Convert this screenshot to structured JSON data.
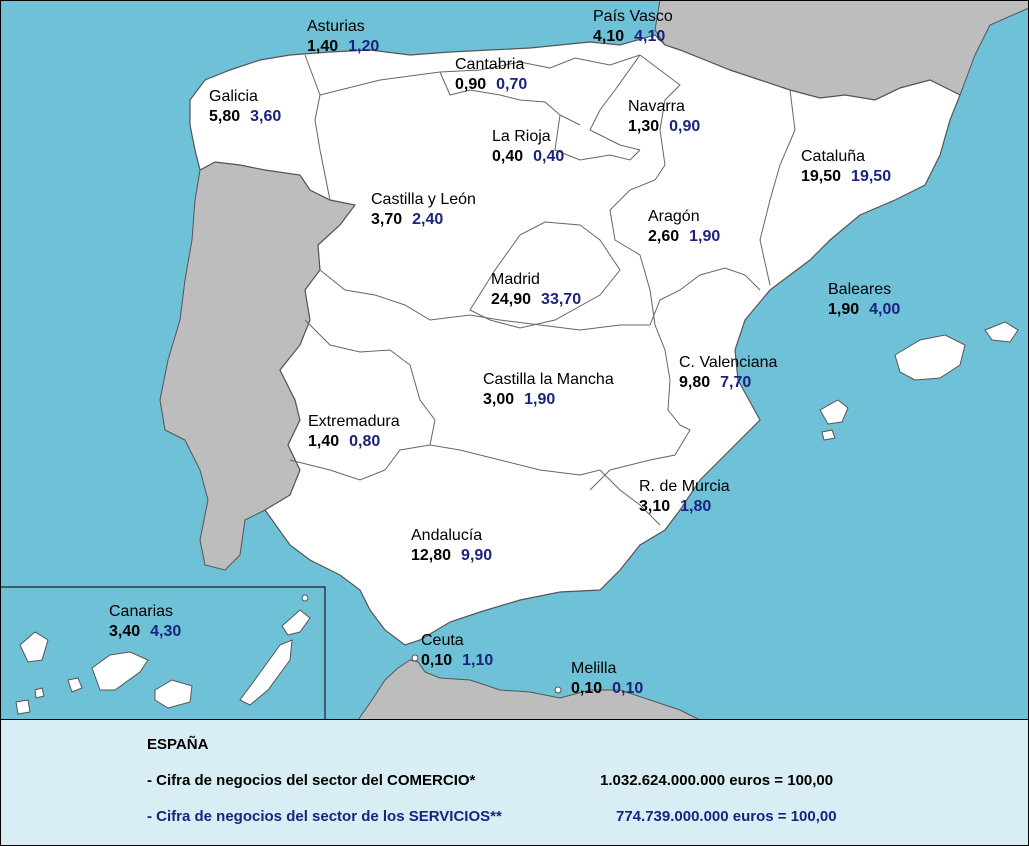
{
  "colors": {
    "sea": "#6ec1d6",
    "land_spain": "#ffffff",
    "land_other": "#bdbdbd",
    "region_border": "#555555",
    "comercio_value": "#000000",
    "servicios_value": "#1a237e",
    "legend_bg": "#d9edf4"
  },
  "regions": [
    {
      "name": "Asturias",
      "comercio": "1,40",
      "servicios": "1,20"
    },
    {
      "name": "País Vasco",
      "comercio": "4,10",
      "servicios": "4,10"
    },
    {
      "name": "Cantabria",
      "comercio": "0,90",
      "servicios": "0,70"
    },
    {
      "name": "Galicia",
      "comercio": "5,80",
      "servicios": "3,60"
    },
    {
      "name": "Navarra",
      "comercio": "1,30",
      "servicios": "0,90"
    },
    {
      "name": "La Rioja",
      "comercio": "0,40",
      "servicios": "0,40"
    },
    {
      "name": "Cataluña",
      "comercio": "19,50",
      "servicios": "19,50"
    },
    {
      "name": "Castilla y León",
      "comercio": "3,70",
      "servicios": "2,40"
    },
    {
      "name": "Aragón",
      "comercio": "2,60",
      "servicios": "1,90"
    },
    {
      "name": "Madrid",
      "comercio": "24,90",
      "servicios": "33,70"
    },
    {
      "name": "Baleares",
      "comercio": "1,90",
      "servicios": "4,00"
    },
    {
      "name": "C. Valenciana",
      "comercio": "9,80",
      "servicios": "7,70"
    },
    {
      "name": "Castilla la Mancha",
      "comercio": "3,00",
      "servicios": "1,90"
    },
    {
      "name": "Extremadura",
      "comercio": "1,40",
      "servicios": "0,80"
    },
    {
      "name": "R. de Murcia",
      "comercio": "3,10",
      "servicios": "1,80"
    },
    {
      "name": "Andalucía",
      "comercio": "12,80",
      "servicios": "9,90"
    },
    {
      "name": "Canarias",
      "comercio": "3,40",
      "servicios": "4,30"
    },
    {
      "name": "Ceuta",
      "comercio": "0,10",
      "servicios": "1,10"
    },
    {
      "name": "Melilla",
      "comercio": "0,10",
      "servicios": "0,10"
    }
  ],
  "legend": {
    "title": "ESPAÑA",
    "comercio_label": "- Cifra de negocios del sector del COMERCIO*",
    "comercio_value": "1.032.624.000.000 euros = 100,00",
    "servicios_label": "- Cifra de negocios del sector de los SERVICIOS**",
    "servicios_value": "774.739.000.000 euros = 100,00"
  }
}
